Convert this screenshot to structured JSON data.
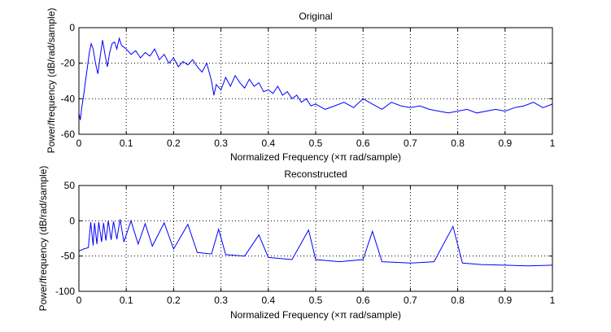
{
  "chart_data": [
    {
      "type": "line",
      "title": "Original",
      "xlabel": "Normalized Frequency  (×π rad/sample)",
      "ylabel": "Power/frequency (dB/rad/sample)",
      "xlim": [
        0,
        1
      ],
      "ylim": [
        -60,
        0
      ],
      "xticks": [
        0,
        0.1,
        0.2,
        0.3,
        0.4,
        0.5,
        0.6,
        0.7,
        0.8,
        0.9,
        1
      ],
      "xtick_labels": [
        "0",
        "0.1",
        "0.2",
        "0.3",
        "0.4",
        "0.5",
        "0.6",
        "0.7",
        "0.8",
        "0.9",
        "1"
      ],
      "yticks": [
        -60,
        -40,
        -20,
        0
      ],
      "ytick_labels": [
        "-60",
        "-40",
        "-20",
        "0"
      ],
      "grid": true,
      "series": [
        {
          "color": "#0000ff",
          "x": [
            0.0,
            0.003,
            0.006,
            0.01,
            0.014,
            0.018,
            0.022,
            0.026,
            0.03,
            0.035,
            0.04,
            0.045,
            0.05,
            0.055,
            0.06,
            0.065,
            0.07,
            0.075,
            0.08,
            0.085,
            0.09,
            0.1,
            0.11,
            0.12,
            0.13,
            0.14,
            0.15,
            0.16,
            0.17,
            0.18,
            0.19,
            0.2,
            0.21,
            0.22,
            0.23,
            0.24,
            0.25,
            0.26,
            0.27,
            0.28,
            0.285,
            0.29,
            0.3,
            0.31,
            0.32,
            0.33,
            0.34,
            0.35,
            0.36,
            0.37,
            0.38,
            0.39,
            0.4,
            0.41,
            0.42,
            0.43,
            0.44,
            0.45,
            0.46,
            0.47,
            0.48,
            0.49,
            0.5,
            0.52,
            0.54,
            0.56,
            0.58,
            0.6,
            0.62,
            0.64,
            0.66,
            0.68,
            0.7,
            0.72,
            0.74,
            0.76,
            0.78,
            0.8,
            0.82,
            0.84,
            0.86,
            0.88,
            0.9,
            0.92,
            0.94,
            0.96,
            0.98,
            1.0
          ],
          "y": [
            -48,
            -52,
            -45,
            -38,
            -30,
            -22,
            -14,
            -9,
            -12,
            -20,
            -26,
            -16,
            -7,
            -15,
            -22,
            -14,
            -9,
            -8,
            -12,
            -6,
            -10,
            -12,
            -15,
            -13,
            -17,
            -14,
            -16,
            -12,
            -18,
            -15,
            -20,
            -17,
            -22,
            -19,
            -21,
            -18,
            -22,
            -25,
            -20,
            -30,
            -38,
            -32,
            -35,
            -28,
            -33,
            -27,
            -31,
            -34,
            -29,
            -33,
            -31,
            -36,
            -35,
            -37,
            -33,
            -38,
            -36,
            -40,
            -38,
            -42,
            -40,
            -44,
            -43,
            -46,
            -44,
            -42,
            -45,
            -40,
            -43,
            -46,
            -42,
            -44,
            -45,
            -44,
            -46,
            -47,
            -48,
            -47,
            -46,
            -48,
            -47,
            -46,
            -47,
            -45,
            -44,
            -42,
            -45,
            -43
          ]
        }
      ]
    },
    {
      "type": "line",
      "title": "Reconstructed",
      "xlabel": "Normalized Frequency  (×π rad/sample)",
      "ylabel": "Power/frequency (dB/rad/sample)",
      "xlim": [
        0,
        1
      ],
      "ylim": [
        -100,
        50
      ],
      "xticks": [
        0,
        0.1,
        0.2,
        0.3,
        0.4,
        0.5,
        0.6,
        0.7,
        0.8,
        0.9,
        1
      ],
      "xtick_labels": [
        "0",
        "0.1",
        "0.2",
        "0.3",
        "0.4",
        "0.5",
        "0.6",
        "0.7",
        "0.8",
        "0.9",
        "1"
      ],
      "yticks": [
        -100,
        -50,
        0,
        50
      ],
      "ytick_labels": [
        "-100",
        "-50",
        "0",
        "50"
      ],
      "grid": true,
      "series": [
        {
          "color": "#0000ff",
          "x": [
            0.0,
            0.01,
            0.02,
            0.025,
            0.03,
            0.033,
            0.038,
            0.042,
            0.048,
            0.052,
            0.057,
            0.062,
            0.068,
            0.073,
            0.08,
            0.087,
            0.095,
            0.11,
            0.125,
            0.14,
            0.155,
            0.18,
            0.2,
            0.23,
            0.25,
            0.28,
            0.295,
            0.31,
            0.35,
            0.38,
            0.4,
            0.45,
            0.485,
            0.5,
            0.55,
            0.6,
            0.62,
            0.64,
            0.7,
            0.75,
            0.79,
            0.81,
            0.85,
            0.9,
            0.95,
            1.0
          ],
          "y": [
            -43,
            -40,
            -38,
            -2,
            -35,
            -3,
            -33,
            -2,
            -30,
            -3,
            -28,
            0,
            -27,
            -1,
            -26,
            2,
            -30,
            0,
            -33,
            -4,
            -36,
            -3,
            -40,
            -5,
            -45,
            -47,
            -12,
            -48,
            -50,
            -20,
            -52,
            -55,
            -13,
            -55,
            -58,
            -55,
            -15,
            -58,
            -60,
            -58,
            -8,
            -60,
            -62,
            -63,
            -64,
            -63
          ]
        }
      ]
    }
  ]
}
